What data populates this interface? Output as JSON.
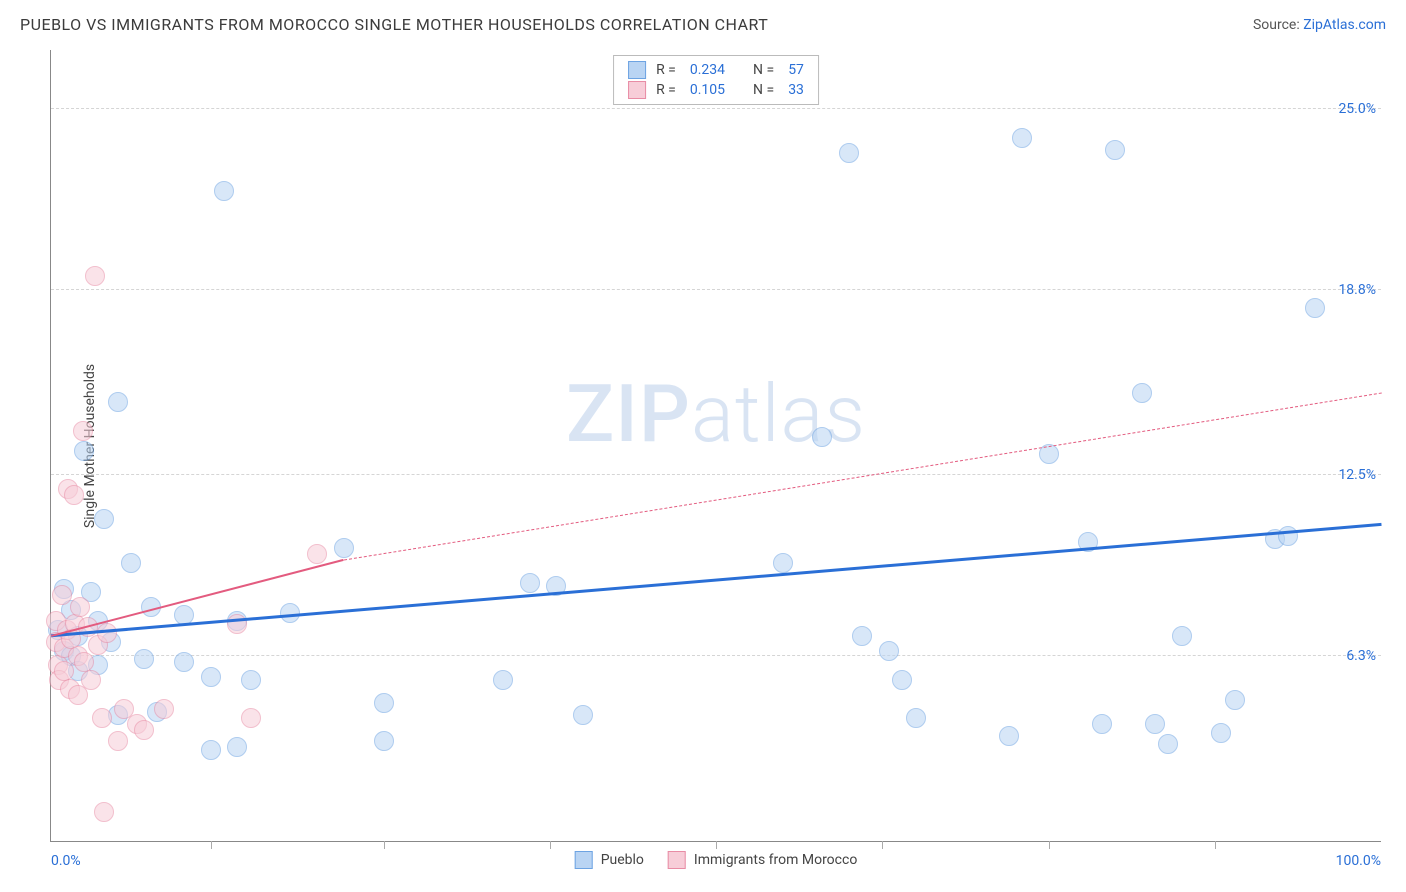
{
  "title": "PUEBLO VS IMMIGRANTS FROM MOROCCO SINGLE MOTHER HOUSEHOLDS CORRELATION CHART",
  "source_label": "Source:",
  "source_name": "ZipAtlas.com",
  "y_axis_label": "Single Mother Households",
  "watermark_pre": "ZIP",
  "watermark_post": "atlas",
  "chart": {
    "type": "scatter",
    "xlim": [
      0,
      100
    ],
    "ylim": [
      0,
      27
    ],
    "x_ticks": [
      0,
      100
    ],
    "x_tick_labels": [
      "0.0%",
      "100.0%"
    ],
    "x_minor_ticks": [
      12,
      25,
      37.5,
      50,
      62.5,
      75,
      87.5
    ],
    "y_ticks": [
      6.3,
      12.5,
      18.8,
      25.0
    ],
    "y_tick_labels": [
      "6.3%",
      "12.5%",
      "18.8%",
      "25.0%"
    ],
    "background_color": "#ffffff",
    "grid_color": "#d5d5d5",
    "axis_color": "#888888",
    "marker_radius": 10,
    "marker_opacity": 0.55,
    "series": [
      {
        "name": "Pueblo",
        "fill": "#b9d4f3",
        "stroke": "#6da3e2",
        "trend_color": "#2a6fd6",
        "trend_width": 2.5,
        "trend": {
          "x1": 0,
          "y1": 7.0,
          "x2": 100,
          "y2": 10.8
        },
        "R": "0.234",
        "N": "57",
        "points": [
          [
            0.5,
            7.2
          ],
          [
            1,
            8.6
          ],
          [
            1,
            6.5
          ],
          [
            1.5,
            6.3
          ],
          [
            1.5,
            7.9
          ],
          [
            2,
            7.0
          ],
          [
            2,
            5.8
          ],
          [
            2.5,
            13.3
          ],
          [
            3,
            8.5
          ],
          [
            3.5,
            7.5
          ],
          [
            3.5,
            6.0
          ],
          [
            4,
            11.0
          ],
          [
            4.5,
            6.8
          ],
          [
            5,
            15.0
          ],
          [
            5,
            4.3
          ],
          [
            6,
            9.5
          ],
          [
            7,
            6.2
          ],
          [
            7.5,
            8.0
          ],
          [
            8,
            4.4
          ],
          [
            10,
            6.1
          ],
          [
            10,
            7.7
          ],
          [
            12,
            5.6
          ],
          [
            12,
            3.1
          ],
          [
            13,
            22.2
          ],
          [
            14,
            7.5
          ],
          [
            14,
            3.2
          ],
          [
            15,
            5.5
          ],
          [
            18,
            7.8
          ],
          [
            22,
            10.0
          ],
          [
            25,
            3.4
          ],
          [
            25,
            4.7
          ],
          [
            34,
            5.5
          ],
          [
            36,
            8.8
          ],
          [
            38,
            8.7
          ],
          [
            40,
            4.3
          ],
          [
            55,
            9.5
          ],
          [
            58,
            13.8
          ],
          [
            60,
            23.5
          ],
          [
            61,
            7.0
          ],
          [
            63,
            6.5
          ],
          [
            64,
            5.5
          ],
          [
            65,
            4.2
          ],
          [
            72,
            3.6
          ],
          [
            73,
            24.0
          ],
          [
            75,
            13.2
          ],
          [
            78,
            10.2
          ],
          [
            79,
            4.0
          ],
          [
            80,
            23.6
          ],
          [
            82,
            15.3
          ],
          [
            83,
            4.0
          ],
          [
            84,
            3.3
          ],
          [
            85,
            7.0
          ],
          [
            88,
            3.7
          ],
          [
            89,
            4.8
          ],
          [
            92,
            10.3
          ],
          [
            93,
            10.4
          ],
          [
            95,
            18.2
          ]
        ]
      },
      {
        "name": "Immigrants from Morocco",
        "fill": "#f7cdd8",
        "stroke": "#e88ca5",
        "trend_color": "#e35b7f",
        "trend_width": 2,
        "trend_solid": {
          "x1": 0,
          "y1": 7.0,
          "x2": 22,
          "y2": 9.6
        },
        "trend_dashed": {
          "x1": 22,
          "y1": 9.6,
          "x2": 100,
          "y2": 15.3
        },
        "R": "0.105",
        "N": "33",
        "points": [
          [
            0.4,
            6.8
          ],
          [
            0.4,
            7.5
          ],
          [
            0.5,
            6.0
          ],
          [
            0.6,
            5.5
          ],
          [
            0.8,
            8.4
          ],
          [
            1.0,
            5.8
          ],
          [
            1.0,
            6.6
          ],
          [
            1.2,
            7.2
          ],
          [
            1.3,
            12.0
          ],
          [
            1.4,
            5.2
          ],
          [
            1.5,
            6.9
          ],
          [
            1.7,
            11.8
          ],
          [
            1.8,
            7.4
          ],
          [
            2.0,
            5.0
          ],
          [
            2.0,
            6.3
          ],
          [
            2.2,
            8.0
          ],
          [
            2.4,
            14.0
          ],
          [
            2.5,
            6.1
          ],
          [
            2.8,
            7.3
          ],
          [
            3.0,
            5.5
          ],
          [
            3.3,
            19.3
          ],
          [
            3.5,
            6.7
          ],
          [
            3.8,
            4.2
          ],
          [
            4.0,
            1.0
          ],
          [
            4.2,
            7.1
          ],
          [
            5.0,
            3.4
          ],
          [
            5.5,
            4.5
          ],
          [
            6.5,
            4.0
          ],
          [
            7.0,
            3.8
          ],
          [
            8.5,
            4.5
          ],
          [
            14.0,
            7.4
          ],
          [
            15.0,
            4.2
          ],
          [
            20.0,
            9.8
          ]
        ]
      }
    ]
  },
  "legend_top": {
    "r_label": "R =",
    "n_label": "N ="
  },
  "legend_bottom": {
    "s1": "Pueblo",
    "s2": "Immigrants from Morocco"
  }
}
